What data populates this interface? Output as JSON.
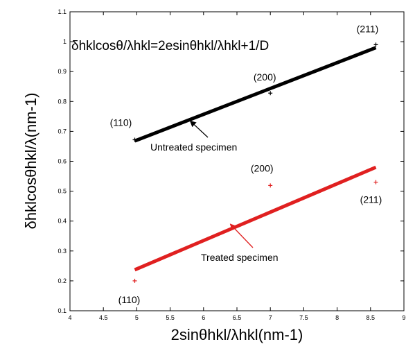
{
  "chart_data": {
    "type": "scatter",
    "equation": "δhklcosθ/λhkl=2esinθhkl/λhkl+1/D",
    "xlabel": "2sinθhkl/λhkl(nm-1)",
    "ylabel": "δhklcosθhkl/λ(nm-1)",
    "xlim": [
      4,
      9
    ],
    "ylim": [
      0.1,
      1.1
    ],
    "xticks": [
      "4",
      "4.5",
      "5",
      "5.5",
      "6",
      "6.5",
      "7",
      "7.5",
      "8",
      "8.5",
      "9"
    ],
    "yticks": [
      "0.1",
      "0.2",
      "0.3",
      "0.4",
      "0.5",
      "0.6",
      "0.7",
      "0.8",
      "0.9",
      "1",
      "1.1"
    ],
    "grid": false,
    "series": [
      {
        "name": "Untreated specimen",
        "color": "#000000",
        "marker": "+",
        "points": [
          {
            "x": 4.97,
            "y": 0.672,
            "label": "(110)"
          },
          {
            "x": 7.0,
            "y": 0.828,
            "label": "(200)"
          },
          {
            "x": 8.58,
            "y": 0.99,
            "label": "(211)"
          }
        ],
        "fit": {
          "x": [
            4.97,
            8.58
          ],
          "y": [
            0.668,
            0.98
          ]
        }
      },
      {
        "name": "Treated specimen",
        "color": "#e02020",
        "marker": "+",
        "points": [
          {
            "x": 4.97,
            "y": 0.2,
            "label": "(110)"
          },
          {
            "x": 7.0,
            "y": 0.519,
            "label": "(200)"
          },
          {
            "x": 8.58,
            "y": 0.53,
            "label": "(211)"
          }
        ],
        "fit": {
          "x": [
            4.97,
            8.58
          ],
          "y": [
            0.237,
            0.58
          ]
        }
      }
    ],
    "annotations": [
      {
        "text": "Untreated specimen",
        "series": 0,
        "arrow_to": {
          "x": 5.8,
          "y": 0.735
        }
      },
      {
        "text": "Treated specimen",
        "series": 1,
        "arrow_to": {
          "x": 6.4,
          "y": 0.39
        }
      }
    ]
  }
}
